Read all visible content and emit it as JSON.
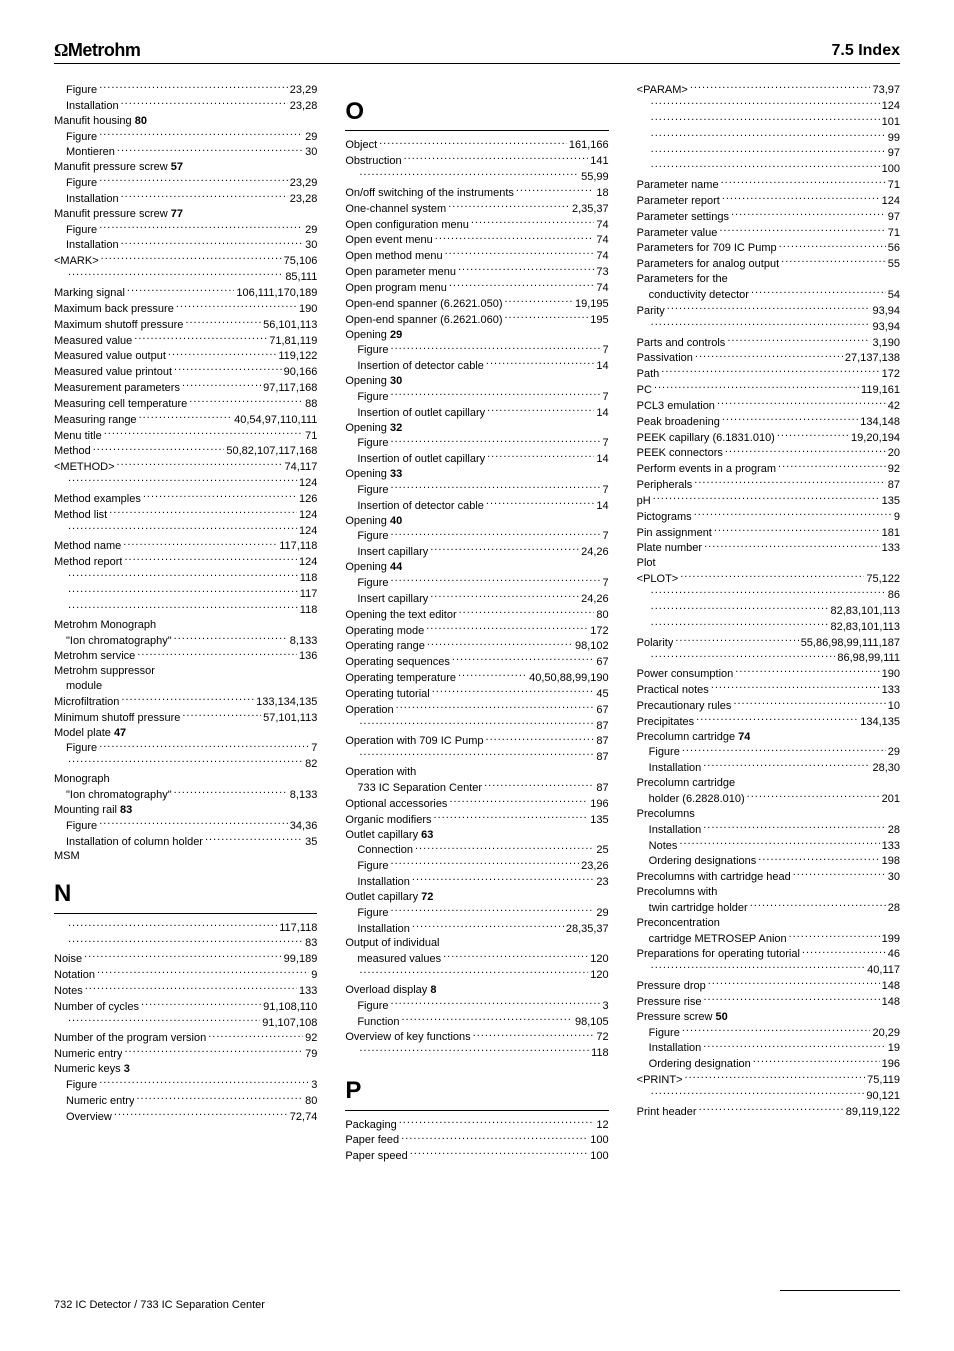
{
  "header": {
    "brand_symbol": "Ω",
    "brand_name": "Metrohm",
    "section": "7.5 Index"
  },
  "footer": {
    "text": "732 IC Detector  / 733 IC Separation Center"
  },
  "columns": [
    [
      {
        "label": "Figure",
        "page": "23,29",
        "indent": 1
      },
      {
        "label": "Installation",
        "page": "23,28",
        "indent": 1
      },
      {
        "label": "Manufit housing",
        "bold_suffix": "80",
        "page": "",
        "indent": 0
      },
      {
        "label": "Figure",
        "page": "29",
        "indent": 1
      },
      {
        "label": "Montieren",
        "page": "30",
        "indent": 1
      },
      {
        "label": "Manufit pressure screw",
        "bold_suffix": "57",
        "page": "",
        "indent": 0
      },
      {
        "label": "Figure",
        "page": "23,29",
        "indent": 1
      },
      {
        "label": "Installation",
        "page": "23,28",
        "indent": 1
      },
      {
        "label": "Manufit pressure screw",
        "bold_suffix": "77",
        "page": "",
        "indent": 0
      },
      {
        "label": "Figure",
        "page": "29",
        "indent": 1
      },
      {
        "label": "Installation",
        "page": "30",
        "indent": 1
      },
      {
        "label": "<MARK>",
        "page": "75,106",
        "indent": 0
      },
      {
        "label": "",
        "page": "85,111",
        "indent": 1
      },
      {
        "label": "Marking signal",
        "page": "106,111,170,189",
        "indent": 0
      },
      {
        "label": "Maximum back pressure",
        "page": "190",
        "indent": 0
      },
      {
        "label": "Maximum shutoff pressure",
        "page": "56,101,113",
        "indent": 0
      },
      {
        "label": "Measured value",
        "page": "71,81,119",
        "indent": 0
      },
      {
        "label": "Measured value output",
        "page": "119,122",
        "indent": 0
      },
      {
        "label": "Measured value printout",
        "page": "90,166",
        "indent": 0
      },
      {
        "label": "Measurement parameters",
        "page": "97,117,168",
        "indent": 0
      },
      {
        "label": "Measuring cell temperature",
        "page": "88",
        "indent": 0
      },
      {
        "label": "Measuring range",
        "page": "40,54,97,110,111",
        "indent": 0
      },
      {
        "label": "Menu title",
        "page": "71",
        "indent": 0
      },
      {
        "label": "Method",
        "page": "50,82,107,117,168",
        "indent": 0
      },
      {
        "label": "<METHOD>",
        "page": "74,117",
        "indent": 0
      },
      {
        "label": "",
        "page": "124",
        "indent": 1
      },
      {
        "label": "Method examples",
        "page": "126",
        "indent": 0
      },
      {
        "label": "Method list",
        "page": "124",
        "indent": 0
      },
      {
        "label": "",
        "page": "124",
        "indent": 1
      },
      {
        "label": "Method name",
        "page": "117,118",
        "indent": 0
      },
      {
        "label": "Method report",
        "page": "124",
        "indent": 0
      },
      {
        "label": "",
        "page": "118",
        "indent": 1
      },
      {
        "label": "",
        "page": "117",
        "indent": 1
      },
      {
        "label": "",
        "page": "118",
        "indent": 1
      },
      {
        "label": "Metrohm Monograph",
        "page": "",
        "indent": 0,
        "plain": true
      },
      {
        "label": "\"Ion chromatography\"",
        "page": "8,133",
        "indent": 1
      },
      {
        "label": "Metrohm service",
        "page": "136",
        "indent": 0
      },
      {
        "label": "Metrohm suppressor",
        "page": "",
        "indent": 0,
        "plain": true
      },
      {
        "label": "module",
        "page": "",
        "indent": 1,
        "plain": true
      },
      {
        "label": "Microfiltration",
        "page": "133,134,135",
        "indent": 0
      },
      {
        "label": "Minimum shutoff pressure",
        "page": "57,101,113",
        "indent": 0
      },
      {
        "label": "Model plate",
        "bold_suffix": "47",
        "page": "",
        "indent": 0
      },
      {
        "label": "Figure",
        "page": "7",
        "indent": 1
      },
      {
        "label": "",
        "page": "82",
        "indent": 1
      },
      {
        "label": "Monograph",
        "page": "",
        "indent": 0,
        "plain": true
      },
      {
        "label": "\"Ion chromatography\"",
        "page": "8,133",
        "indent": 1
      },
      {
        "label": "Mounting rail",
        "bold_suffix": "83",
        "page": "",
        "indent": 0
      },
      {
        "label": "Figure",
        "page": "34,36",
        "indent": 1
      },
      {
        "label": "Installation of column holder",
        "page": "35",
        "indent": 1
      },
      {
        "label": "MSM",
        "page": "",
        "indent": 0,
        "plain": true
      },
      {
        "letter": "N"
      },
      {
        "label": "",
        "page": "117,118",
        "indent": 1
      },
      {
        "label": "",
        "page": "83",
        "indent": 1
      },
      {
        "label": "Noise",
        "page": "99,189",
        "indent": 0
      },
      {
        "label": "Notation",
        "page": "9",
        "indent": 0
      },
      {
        "label": "Notes",
        "page": "133",
        "indent": 0
      },
      {
        "label": "Number of cycles",
        "page": "91,108,110",
        "indent": 0
      },
      {
        "label": "",
        "page": "91,107,108",
        "indent": 1
      },
      {
        "label": "Number of the program version",
        "page": "92",
        "indent": 0
      },
      {
        "label": "Numeric entry",
        "page": "79",
        "indent": 0
      },
      {
        "label": "Numeric keys",
        "bold_suffix": "3",
        "page": "",
        "indent": 0
      },
      {
        "label": "Figure",
        "page": "3",
        "indent": 1
      },
      {
        "label": "Numeric entry",
        "page": "80",
        "indent": 1
      },
      {
        "label": "Overview",
        "page": "72,74",
        "indent": 1
      }
    ],
    [
      {
        "letter": "O"
      },
      {
        "label": "Object",
        "page": "161,166",
        "indent": 0
      },
      {
        "label": "Obstruction",
        "page": "141",
        "indent": 0
      },
      {
        "label": "",
        "page": "55,99",
        "indent": 1
      },
      {
        "label": "On/off switching of the instruments",
        "page": "18",
        "indent": 0
      },
      {
        "label": "One-channel system",
        "page": "2,35,37",
        "indent": 0
      },
      {
        "label": "Open configuration menu",
        "page": "74",
        "indent": 0
      },
      {
        "label": "Open event menu",
        "page": "74",
        "indent": 0
      },
      {
        "label": "Open method menu",
        "page": "74",
        "indent": 0
      },
      {
        "label": "Open parameter menu",
        "page": "73",
        "indent": 0
      },
      {
        "label": "Open program menu",
        "page": "74",
        "indent": 0
      },
      {
        "label": "Open-end spanner (6.2621.050)",
        "page": "19,195",
        "indent": 0
      },
      {
        "label": "Open-end spanner (6.2621.060)",
        "page": "195",
        "indent": 0
      },
      {
        "label": "Opening",
        "bold_suffix": "29",
        "page": "",
        "indent": 0
      },
      {
        "label": "Figure",
        "page": "7",
        "indent": 1
      },
      {
        "label": "Insertion of detector cable",
        "page": "14",
        "indent": 1
      },
      {
        "label": "Opening",
        "bold_suffix": "30",
        "page": "",
        "indent": 0
      },
      {
        "label": "Figure",
        "page": "7",
        "indent": 1
      },
      {
        "label": "Insertion of outlet capillary",
        "page": "14",
        "indent": 1
      },
      {
        "label": "Opening",
        "bold_suffix": "32",
        "page": "",
        "indent": 0
      },
      {
        "label": "Figure",
        "page": "7",
        "indent": 1
      },
      {
        "label": "Insertion of outlet capillary",
        "page": "14",
        "indent": 1
      },
      {
        "label": "Opening",
        "bold_suffix": "33",
        "page": "",
        "indent": 0
      },
      {
        "label": "Figure",
        "page": "7",
        "indent": 1
      },
      {
        "label": "Insertion of detector cable",
        "page": "14",
        "indent": 1
      },
      {
        "label": "Opening",
        "bold_suffix": "40",
        "page": "",
        "indent": 0
      },
      {
        "label": "Figure",
        "page": "7",
        "indent": 1
      },
      {
        "label": "Insert capillary",
        "page": "24,26",
        "indent": 1
      },
      {
        "label": "Opening",
        "bold_suffix": "44",
        "page": "",
        "indent": 0
      },
      {
        "label": "Figure",
        "page": "7",
        "indent": 1
      },
      {
        "label": "Insert capillary",
        "page": "24,26",
        "indent": 1
      },
      {
        "label": "Opening the text editor",
        "page": "80",
        "indent": 0
      },
      {
        "label": "Operating mode",
        "page": "172",
        "indent": 0
      },
      {
        "label": "Operating range",
        "page": "98,102",
        "indent": 0
      },
      {
        "label": "Operating sequences",
        "page": "67",
        "indent": 0
      },
      {
        "label": "Operating temperature",
        "page": "40,50,88,99,190",
        "indent": 0
      },
      {
        "label": "Operating tutorial",
        "page": "45",
        "indent": 0
      },
      {
        "label": "Operation",
        "page": "67",
        "indent": 0
      },
      {
        "label": "",
        "page": "87",
        "indent": 1
      },
      {
        "label": "Operation with 709 IC Pump",
        "page": "87",
        "indent": 0
      },
      {
        "label": "",
        "page": "87",
        "indent": 1
      },
      {
        "label": "Operation with",
        "page": "",
        "indent": 0,
        "plain": true
      },
      {
        "label": "733 IC Separation Center",
        "page": "87",
        "indent": 1
      },
      {
        "label": "Optional accessories",
        "page": "196",
        "indent": 0
      },
      {
        "label": "Organic modifiers",
        "page": "135",
        "indent": 0
      },
      {
        "label": "Outlet capillary",
        "bold_suffix": "63",
        "page": "",
        "indent": 0
      },
      {
        "label": "Connection",
        "page": "25",
        "indent": 1
      },
      {
        "label": "Figure",
        "page": "23,26",
        "indent": 1
      },
      {
        "label": "Installation",
        "page": "23",
        "indent": 1
      },
      {
        "label": "Outlet capillary",
        "bold_suffix": "72",
        "page": "",
        "indent": 0
      },
      {
        "label": "Figure",
        "page": "29",
        "indent": 1
      },
      {
        "label": "Installation",
        "page": "28,35,37",
        "indent": 1
      },
      {
        "label": "Output of individual",
        "page": "",
        "indent": 0,
        "plain": true
      },
      {
        "label": "measured values",
        "page": "120",
        "indent": 1
      },
      {
        "label": "",
        "page": "120",
        "indent": 1
      },
      {
        "label": "Overload display",
        "bold_suffix": "8",
        "page": "",
        "indent": 0
      },
      {
        "label": "Figure",
        "page": "3",
        "indent": 1
      },
      {
        "label": "Function",
        "page": "98,105",
        "indent": 1
      },
      {
        "label": "Overview of key functions",
        "page": "72",
        "indent": 0
      },
      {
        "label": "",
        "page": "118",
        "indent": 1
      },
      {
        "letter": "P"
      },
      {
        "label": "Packaging",
        "page": "12",
        "indent": 0
      },
      {
        "label": "Paper feed",
        "page": "100",
        "indent": 0
      },
      {
        "label": "Paper speed",
        "page": "100",
        "indent": 0
      }
    ],
    [
      {
        "label": "<PARAM>",
        "page": "73,97",
        "indent": 0
      },
      {
        "label": "",
        "page": "124",
        "indent": 1
      },
      {
        "label": "",
        "page": "101",
        "indent": 1
      },
      {
        "label": "",
        "page": "99",
        "indent": 1
      },
      {
        "label": "",
        "page": "97",
        "indent": 1
      },
      {
        "label": "",
        "page": "100",
        "indent": 1
      },
      {
        "label": "Parameter name",
        "page": "71",
        "indent": 0
      },
      {
        "label": "Parameter report",
        "page": "124",
        "indent": 0
      },
      {
        "label": "Parameter settings",
        "page": "97",
        "indent": 0
      },
      {
        "label": "Parameter value",
        "page": "71",
        "indent": 0
      },
      {
        "label": "Parameters for 709 IC Pump",
        "page": "56",
        "indent": 0
      },
      {
        "label": "Parameters for analog output",
        "page": "55",
        "indent": 0
      },
      {
        "label": "Parameters for the",
        "page": "",
        "indent": 0,
        "plain": true
      },
      {
        "label": "conductivity detector",
        "page": "54",
        "indent": 1
      },
      {
        "label": "Parity",
        "page": "93,94",
        "indent": 0
      },
      {
        "label": "",
        "page": "93,94",
        "indent": 1
      },
      {
        "label": "Parts and controls",
        "page": "3,190",
        "indent": 0
      },
      {
        "label": "Passivation",
        "page": "27,137,138",
        "indent": 0
      },
      {
        "label": "Path",
        "page": "172",
        "indent": 0
      },
      {
        "label": "PC",
        "page": "119,161",
        "indent": 0
      },
      {
        "label": "PCL3 emulation",
        "page": "42",
        "indent": 0
      },
      {
        "label": "Peak broadening",
        "page": "134,148",
        "indent": 0
      },
      {
        "label": "PEEK capillary (6.1831.010)",
        "page": "19,20,194",
        "indent": 0
      },
      {
        "label": "PEEK connectors",
        "page": "20",
        "indent": 0
      },
      {
        "label": "Perform events in a program",
        "page": "92",
        "indent": 0
      },
      {
        "label": "Peripherals",
        "page": "87",
        "indent": 0
      },
      {
        "label": "pH",
        "page": "135",
        "indent": 0
      },
      {
        "label": "Pictograms",
        "page": "9",
        "indent": 0
      },
      {
        "label": "Pin assignment",
        "page": "181",
        "indent": 0
      },
      {
        "label": "Plate number",
        "page": "133",
        "indent": 0
      },
      {
        "label": "Plot",
        "page": "",
        "indent": 0,
        "plain": true
      },
      {
        "label": "<PLOT>",
        "page": "75,122",
        "indent": 0
      },
      {
        "label": "",
        "page": "86",
        "indent": 1
      },
      {
        "label": "",
        "page": "82,83,101,113",
        "indent": 1
      },
      {
        "label": "",
        "page": "82,83,101,113",
        "indent": 1
      },
      {
        "label": "Polarity",
        "page": "55,86,98,99,111,187",
        "indent": 0
      },
      {
        "label": "",
        "page": "86,98,99,111",
        "indent": 1
      },
      {
        "label": "Power consumption",
        "page": "190",
        "indent": 0
      },
      {
        "label": "Practical notes",
        "page": "133",
        "indent": 0
      },
      {
        "label": "Precautionary rules",
        "page": "10",
        "indent": 0
      },
      {
        "label": "Precipitates",
        "page": "134,135",
        "indent": 0
      },
      {
        "label": "Precolumn cartridge",
        "bold_suffix": "74",
        "page": "",
        "indent": 0
      },
      {
        "label": "Figure",
        "page": "29",
        "indent": 1
      },
      {
        "label": "Installation",
        "page": "28,30",
        "indent": 1
      },
      {
        "label": "Precolumn cartridge",
        "page": "",
        "indent": 0,
        "plain": true
      },
      {
        "label": "holder (6.2828.010)",
        "page": "201",
        "indent": 1
      },
      {
        "label": "Precolumns",
        "page": "",
        "indent": 0,
        "plain": true
      },
      {
        "label": "Installation",
        "page": "28",
        "indent": 1
      },
      {
        "label": "Notes",
        "page": "133",
        "indent": 1
      },
      {
        "label": "Ordering designations",
        "page": "198",
        "indent": 1
      },
      {
        "label": "Precolumns with cartridge head",
        "page": "30",
        "indent": 0
      },
      {
        "label": "Precolumns with",
        "page": "",
        "indent": 0,
        "plain": true
      },
      {
        "label": "twin cartridge holder",
        "page": "28",
        "indent": 1
      },
      {
        "label": "Preconcentration",
        "page": "",
        "indent": 0,
        "plain": true
      },
      {
        "label": "cartridge METROSEP Anion",
        "page": "199",
        "indent": 1
      },
      {
        "label": "Preparations for operating tutorial",
        "page": "46",
        "indent": 0
      },
      {
        "label": "",
        "page": "40,117",
        "indent": 1
      },
      {
        "label": "Pressure drop",
        "page": "148",
        "indent": 0
      },
      {
        "label": "Pressure rise",
        "page": "148",
        "indent": 0
      },
      {
        "label": "Pressure screw",
        "bold_suffix": "50",
        "page": "",
        "indent": 0
      },
      {
        "label": "Figure",
        "page": "20,29",
        "indent": 1
      },
      {
        "label": "Installation",
        "page": "19",
        "indent": 1
      },
      {
        "label": "Ordering designation",
        "page": "196",
        "indent": 1
      },
      {
        "label": "<PRINT>",
        "page": "75,119",
        "indent": 0
      },
      {
        "label": "",
        "page": "90,121",
        "indent": 1
      },
      {
        "label": "Print header",
        "page": "89,119,122",
        "indent": 0
      }
    ]
  ]
}
